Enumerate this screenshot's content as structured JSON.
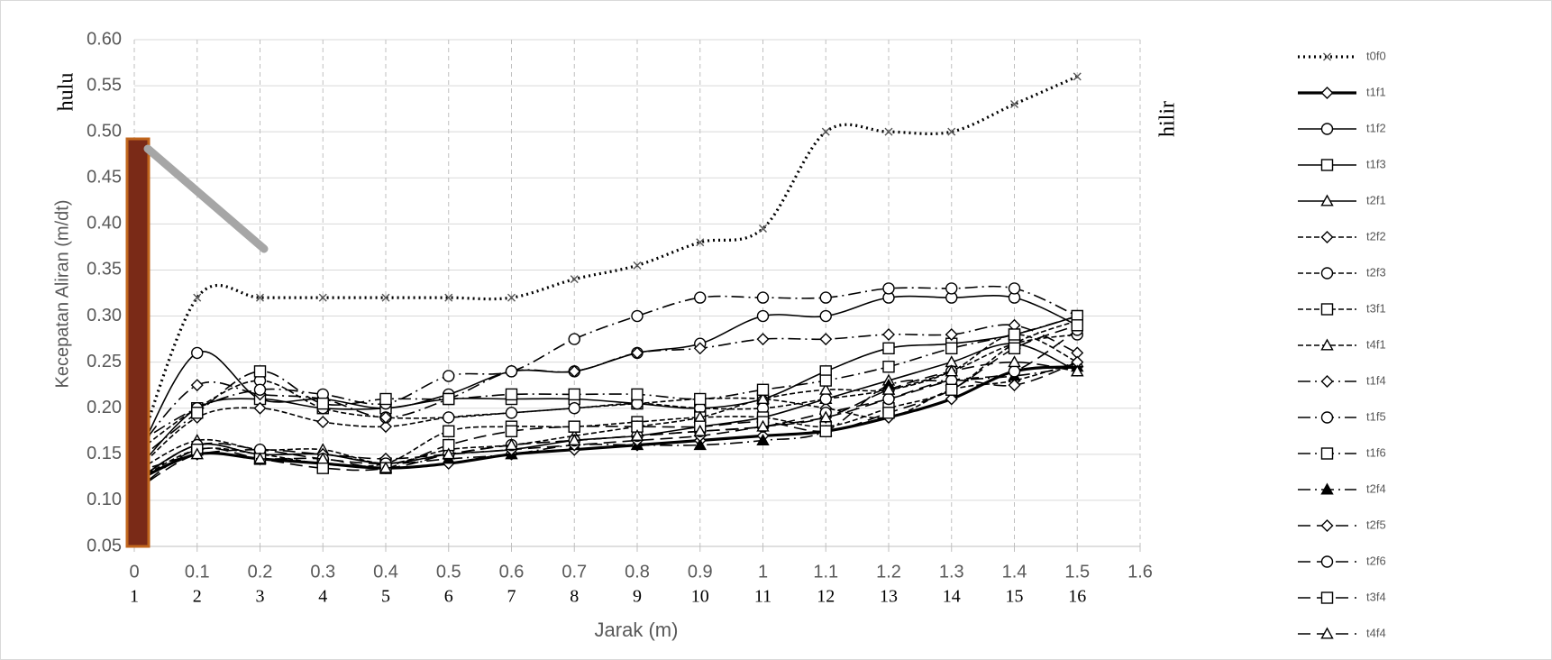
{
  "chart_data": {
    "type": "line",
    "x_label": "Jarak (m)",
    "y_label": "Kecepatan Aliran (m/dt)",
    "annotations": [
      "hulu",
      "hilir"
    ],
    "x": [
      0,
      0.1,
      0.2,
      0.3,
      0.4,
      0.5,
      0.6,
      0.7,
      0.8,
      0.9,
      1,
      1.1,
      1.2,
      1.3,
      1.4,
      1.5
    ],
    "x2_labels": [
      1,
      2,
      3,
      4,
      5,
      6,
      7,
      8,
      9,
      10,
      11,
      12,
      13,
      14,
      15,
      16
    ],
    "xlim": [
      0,
      1.6
    ],
    "xticks": [
      0,
      0.1,
      0.2,
      0.3,
      0.4,
      0.5,
      0.6,
      0.7,
      0.8,
      0.9,
      1,
      1.1,
      1.2,
      1.3,
      1.4,
      1.5,
      1.6
    ],
    "ylim": [
      0.05,
      0.6
    ],
    "yticks": [
      0.05,
      {
        "value": 0.1,
        "label": "0.10"
      },
      0.15,
      {
        "value": 0.2,
        "label": "0.20"
      },
      0.25,
      {
        "value": 0.3,
        "label": "0.30"
      },
      0.35,
      {
        "value": 0.4,
        "label": "0.40"
      },
      0.45,
      {
        "value": 0.5,
        "label": "0.50"
      },
      0.55,
      {
        "value": 0.6,
        "label": "0.60"
      }
    ],
    "grid": true,
    "legend": "right",
    "series": [
      {
        "name": "t0f0",
        "color": "#000000",
        "line_style": "dotted",
        "marker": "x",
        "thick": true,
        "values": [
          0.14,
          0.32,
          0.32,
          0.32,
          0.32,
          0.32,
          0.32,
          0.34,
          0.355,
          0.38,
          0.395,
          0.5,
          0.5,
          0.5,
          0.53,
          0.56
        ]
      },
      {
        "name": "t1f1",
        "color": "#000000",
        "line_style": "solid",
        "marker": "diamond",
        "thick": true,
        "values": [
          0.12,
          0.15,
          0.145,
          0.14,
          0.135,
          0.14,
          0.15,
          0.155,
          0.16,
          0.165,
          0.17,
          0.175,
          0.19,
          0.21,
          0.24,
          0.245
        ]
      },
      {
        "name": "t1f2",
        "color": "#000000",
        "line_style": "solid",
        "marker": "circle",
        "values": [
          0.14,
          0.26,
          0.21,
          0.21,
          0.2,
          0.215,
          0.24,
          0.24,
          0.26,
          0.27,
          0.3,
          0.3,
          0.32,
          0.32,
          0.32,
          0.29
        ]
      },
      {
        "name": "t1f3",
        "color": "#000000",
        "line_style": "solid",
        "marker": "square",
        "values": [
          0.13,
          0.2,
          0.21,
          0.2,
          0.2,
          0.21,
          0.21,
          0.21,
          0.205,
          0.2,
          0.21,
          0.24,
          0.265,
          0.27,
          0.28,
          0.3
        ]
      },
      {
        "name": "t2f1",
        "color": "#000000",
        "line_style": "solid",
        "marker": "triangle",
        "values": [
          0.12,
          0.16,
          0.15,
          0.15,
          0.14,
          0.15,
          0.155,
          0.165,
          0.17,
          0.18,
          0.19,
          0.21,
          0.23,
          0.25,
          0.27,
          0.24
        ]
      },
      {
        "name": "t2f2",
        "color": "#000000",
        "line_style": "dashed",
        "marker": "diamond",
        "values": [
          0.13,
          0.19,
          0.2,
          0.185,
          0.18,
          0.19,
          0.195,
          0.2,
          0.205,
          0.21,
          0.21,
          0.2,
          0.19,
          0.22,
          0.23,
          0.25
        ]
      },
      {
        "name": "t2f3",
        "color": "#000000",
        "line_style": "dashed",
        "marker": "circle",
        "values": [
          0.15,
          0.2,
          0.23,
          0.2,
          0.19,
          0.19,
          0.195,
          0.2,
          0.205,
          0.2,
          0.2,
          0.21,
          0.22,
          0.24,
          0.27,
          0.28
        ]
      },
      {
        "name": "t3f1",
        "color": "#000000",
        "line_style": "dashed",
        "marker": "square",
        "values": [
          0.12,
          0.155,
          0.15,
          0.14,
          0.14,
          0.175,
          0.18,
          0.18,
          0.185,
          0.19,
          0.19,
          0.18,
          0.2,
          0.22,
          0.27,
          0.295
        ]
      },
      {
        "name": "t4f1",
        "color": "#000000",
        "line_style": "dashed",
        "marker": "triangle",
        "values": [
          0.13,
          0.165,
          0.155,
          0.155,
          0.14,
          0.155,
          0.16,
          0.17,
          0.18,
          0.19,
          0.21,
          0.22,
          0.22,
          0.24,
          0.28,
          0.25
        ]
      },
      {
        "name": "t1f4",
        "color": "#000000",
        "line_style": "dashdot",
        "marker": "diamond",
        "values": [
          0.15,
          0.225,
          0.215,
          0.21,
          0.19,
          0.21,
          0.24,
          0.24,
          0.26,
          0.265,
          0.275,
          0.275,
          0.28,
          0.28,
          0.29,
          0.26
        ]
      },
      {
        "name": "t1f5",
        "color": "#000000",
        "line_style": "dashdot",
        "marker": "circle",
        "values": [
          0.16,
          0.2,
          0.22,
          0.215,
          0.205,
          0.235,
          0.24,
          0.275,
          0.3,
          0.32,
          0.32,
          0.32,
          0.33,
          0.33,
          0.33,
          0.3
        ]
      },
      {
        "name": "t1f6",
        "color": "#000000",
        "line_style": "dashdot",
        "marker": "square",
        "values": [
          0.14,
          0.195,
          0.24,
          0.205,
          0.21,
          0.21,
          0.215,
          0.215,
          0.215,
          0.21,
          0.22,
          0.23,
          0.245,
          0.265,
          0.28,
          0.3
        ]
      },
      {
        "name": "t2f4",
        "color": "#000000",
        "line_style": "dashdot",
        "marker": "triangle-filled",
        "values": [
          0.12,
          0.16,
          0.15,
          0.15,
          0.14,
          0.145,
          0.15,
          0.16,
          0.16,
          0.16,
          0.165,
          0.175,
          0.225,
          0.23,
          0.235,
          0.245
        ]
      },
      {
        "name": "t2f5",
        "color": "#000000",
        "line_style": "longdash",
        "marker": "diamond",
        "values": [
          0.13,
          0.15,
          0.155,
          0.15,
          0.145,
          0.15,
          0.155,
          0.16,
          0.165,
          0.17,
          0.18,
          0.19,
          0.21,
          0.23,
          0.225,
          0.25
        ]
      },
      {
        "name": "t2f6",
        "color": "#000000",
        "line_style": "longdash",
        "marker": "circle",
        "values": [
          0.12,
          0.16,
          0.155,
          0.145,
          0.14,
          0.15,
          0.16,
          0.165,
          0.17,
          0.175,
          0.18,
          0.195,
          0.21,
          0.23,
          0.24,
          0.285
        ]
      },
      {
        "name": "t3f4",
        "color": "#000000",
        "line_style": "longdash",
        "marker": "square",
        "values": [
          0.11,
          0.155,
          0.145,
          0.135,
          0.135,
          0.16,
          0.175,
          0.18,
          0.18,
          0.18,
          0.185,
          0.175,
          0.195,
          0.22,
          0.265,
          0.29
        ]
      },
      {
        "name": "t4f4",
        "color": "#000000",
        "line_style": "longdash",
        "marker": "triangle",
        "values": [
          0.11,
          0.15,
          0.145,
          0.145,
          0.135,
          0.15,
          0.16,
          0.165,
          0.17,
          0.175,
          0.18,
          0.19,
          0.22,
          0.24,
          0.25,
          0.24
        ]
      }
    ]
  }
}
